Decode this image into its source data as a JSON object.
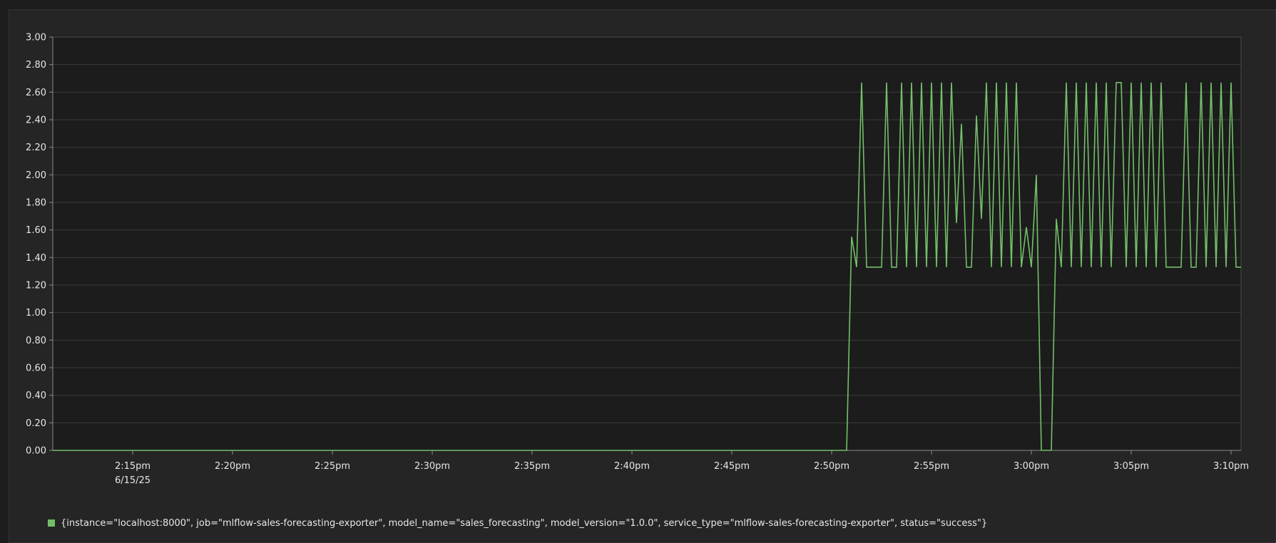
{
  "colors": {
    "series": "#73bf69",
    "plot_background": "#1c1c1c",
    "grid": "#3a3a3a",
    "axis": "#8a8a8a",
    "text": "#e6e6e6"
  },
  "chart_data": {
    "type": "line",
    "title": "",
    "xlabel": "",
    "ylabel": "",
    "ylim": [
      0,
      3.0
    ],
    "xlim": [
      "2025-06-15 14:11",
      "2025-06-15 15:10:30"
    ],
    "grid": true,
    "legend_position": "bottom-left",
    "y_ticks": [
      "0.00",
      "0.20",
      "0.40",
      "0.60",
      "0.80",
      "1.00",
      "1.20",
      "1.40",
      "1.60",
      "1.80",
      "2.00",
      "2.20",
      "2.40",
      "2.60",
      "2.80",
      "3.00"
    ],
    "x_ticks": [
      {
        "time": "2025-06-15 14:15",
        "label": "2:15pm",
        "sublabel": "6/15/25"
      },
      {
        "time": "2025-06-15 14:20",
        "label": "2:20pm"
      },
      {
        "time": "2025-06-15 14:25",
        "label": "2:25pm"
      },
      {
        "time": "2025-06-15 14:30",
        "label": "2:30pm"
      },
      {
        "time": "2025-06-15 14:35",
        "label": "2:35pm"
      },
      {
        "time": "2025-06-15 14:40",
        "label": "2:40pm"
      },
      {
        "time": "2025-06-15 14:45",
        "label": "2:45pm"
      },
      {
        "time": "2025-06-15 14:50",
        "label": "2:50pm"
      },
      {
        "time": "2025-06-15 14:55",
        "label": "2:55pm"
      },
      {
        "time": "2025-06-15 15:00",
        "label": "3:00pm"
      },
      {
        "time": "2025-06-15 15:05",
        "label": "3:05pm"
      },
      {
        "time": "2025-06-15 15:10",
        "label": "3:10pm"
      }
    ],
    "series": [
      {
        "name": "{instance=\"localhost:8000\", job=\"mlflow-sales-forecasting-exporter\", model_name=\"sales_forecasting\", model_version=\"1.0.0\", service_type=\"mlflow-sales-forecasting-exporter\", status=\"success\"}",
        "color": "#73bf69",
        "points": [
          [
            "2025-06-15 14:11:00",
            0.0
          ],
          [
            "2025-06-15 14:50:45",
            0.0
          ],
          [
            "2025-06-15 14:51:00",
            1.55
          ],
          [
            "2025-06-15 14:51:15",
            1.33
          ],
          [
            "2025-06-15 14:51:30",
            2.67
          ],
          [
            "2025-06-15 14:51:45",
            1.33
          ],
          [
            "2025-06-15 14:52:00",
            1.33
          ],
          [
            "2025-06-15 14:52:15",
            1.33
          ],
          [
            "2025-06-15 14:52:30",
            1.33
          ],
          [
            "2025-06-15 14:52:45",
            2.67
          ],
          [
            "2025-06-15 14:53:00",
            1.33
          ],
          [
            "2025-06-15 14:53:15",
            1.33
          ],
          [
            "2025-06-15 14:53:30",
            2.67
          ],
          [
            "2025-06-15 14:53:45",
            1.33
          ],
          [
            "2025-06-15 14:54:00",
            2.67
          ],
          [
            "2025-06-15 14:54:15",
            1.33
          ],
          [
            "2025-06-15 14:54:30",
            2.67
          ],
          [
            "2025-06-15 14:54:45",
            1.33
          ],
          [
            "2025-06-15 14:55:00",
            2.67
          ],
          [
            "2025-06-15 14:55:15",
            1.33
          ],
          [
            "2025-06-15 14:55:30",
            2.67
          ],
          [
            "2025-06-15 14:55:45",
            1.33
          ],
          [
            "2025-06-15 14:56:00",
            2.67
          ],
          [
            "2025-06-15 14:56:15",
            1.65
          ],
          [
            "2025-06-15 14:56:30",
            2.37
          ],
          [
            "2025-06-15 14:56:45",
            1.33
          ],
          [
            "2025-06-15 14:57:00",
            1.33
          ],
          [
            "2025-06-15 14:57:15",
            2.43
          ],
          [
            "2025-06-15 14:57:30",
            1.68
          ],
          [
            "2025-06-15 14:57:45",
            2.67
          ],
          [
            "2025-06-15 14:58:00",
            1.33
          ],
          [
            "2025-06-15 14:58:15",
            2.67
          ],
          [
            "2025-06-15 14:58:30",
            1.33
          ],
          [
            "2025-06-15 14:58:45",
            2.67
          ],
          [
            "2025-06-15 14:59:00",
            1.33
          ],
          [
            "2025-06-15 14:59:15",
            2.67
          ],
          [
            "2025-06-15 14:59:30",
            1.33
          ],
          [
            "2025-06-15 14:59:45",
            1.62
          ],
          [
            "2025-06-15 15:00:00",
            1.33
          ],
          [
            "2025-06-15 15:00:15",
            2.0
          ],
          [
            "2025-06-15 15:00:30",
            0.0
          ],
          [
            "2025-06-15 15:00:45",
            0.0
          ],
          [
            "2025-06-15 15:01:00",
            0.0
          ],
          [
            "2025-06-15 15:01:15",
            1.68
          ],
          [
            "2025-06-15 15:01:30",
            1.33
          ],
          [
            "2025-06-15 15:01:45",
            2.67
          ],
          [
            "2025-06-15 15:02:00",
            1.33
          ],
          [
            "2025-06-15 15:02:15",
            2.67
          ],
          [
            "2025-06-15 15:02:30",
            1.33
          ],
          [
            "2025-06-15 15:02:45",
            2.67
          ],
          [
            "2025-06-15 15:03:00",
            1.33
          ],
          [
            "2025-06-15 15:03:15",
            2.67
          ],
          [
            "2025-06-15 15:03:30",
            1.33
          ],
          [
            "2025-06-15 15:03:45",
            2.67
          ],
          [
            "2025-06-15 15:04:00",
            1.33
          ],
          [
            "2025-06-15 15:04:15",
            2.67
          ],
          [
            "2025-06-15 15:04:30",
            2.67
          ],
          [
            "2025-06-15 15:04:45",
            1.33
          ],
          [
            "2025-06-15 15:05:00",
            2.67
          ],
          [
            "2025-06-15 15:05:15",
            1.33
          ],
          [
            "2025-06-15 15:05:30",
            2.67
          ],
          [
            "2025-06-15 15:05:45",
            1.33
          ],
          [
            "2025-06-15 15:06:00",
            2.67
          ],
          [
            "2025-06-15 15:06:15",
            1.33
          ],
          [
            "2025-06-15 15:06:30",
            2.67
          ],
          [
            "2025-06-15 15:06:45",
            1.33
          ],
          [
            "2025-06-15 15:07:00",
            1.33
          ],
          [
            "2025-06-15 15:07:15",
            1.33
          ],
          [
            "2025-06-15 15:07:30",
            1.33
          ],
          [
            "2025-06-15 15:07:45",
            2.67
          ],
          [
            "2025-06-15 15:08:00",
            1.33
          ],
          [
            "2025-06-15 15:08:15",
            1.33
          ],
          [
            "2025-06-15 15:08:30",
            2.67
          ],
          [
            "2025-06-15 15:08:45",
            1.33
          ],
          [
            "2025-06-15 15:09:00",
            2.67
          ],
          [
            "2025-06-15 15:09:15",
            1.33
          ],
          [
            "2025-06-15 15:09:30",
            2.67
          ],
          [
            "2025-06-15 15:09:45",
            1.33
          ],
          [
            "2025-06-15 15:10:00",
            2.67
          ],
          [
            "2025-06-15 15:10:15",
            1.33
          ],
          [
            "2025-06-15 15:10:30",
            1.33
          ]
        ]
      }
    ]
  }
}
